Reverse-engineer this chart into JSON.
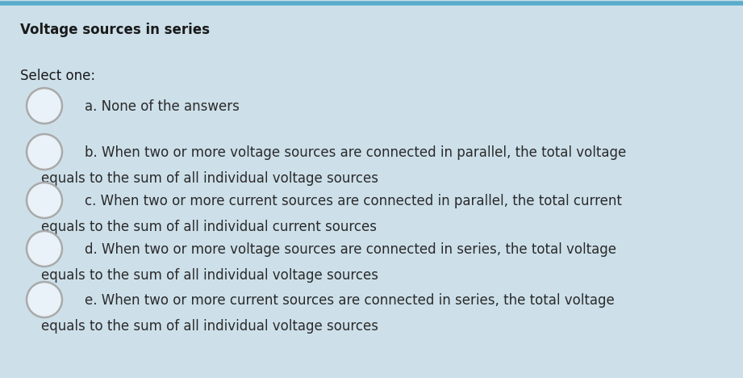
{
  "title": "Voltage sources in series",
  "select_label": "Select one:",
  "background_color": "#cde0ea",
  "top_border_color": "#5aaccc",
  "title_color": "#1a1a1a",
  "text_color": "#2a2a2a",
  "circle_edge_color": "#aaaaaa",
  "circle_face_color": "#e8f2f8",
  "options": [
    {
      "line1": "a. None of the answers",
      "line2": null
    },
    {
      "line1": "b. When two or more voltage sources are connected in parallel, the total voltage",
      "line2": "    equals to the sum of all individual voltage sources"
    },
    {
      "line1": "c. When two or more current sources are connected in parallel, the total current",
      "line2": "    equals to the sum of all individual current sources"
    },
    {
      "line1": "d. When two or more voltage sources are connected in series, the total voltage",
      "line2": "    equals to the sum of all individual voltage sources"
    },
    {
      "line1": "e. When two or more current sources are connected in series, the total voltage",
      "line2": "    equals to the sum of all individual voltage sources"
    }
  ],
  "title_fontsize": 12,
  "select_fontsize": 12,
  "option_fontsize": 12,
  "figwidth": 9.21,
  "figheight": 4.68,
  "dpi": 100
}
